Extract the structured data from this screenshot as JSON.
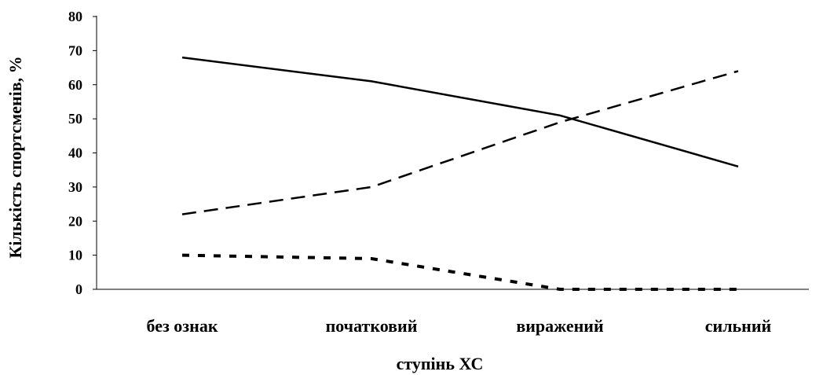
{
  "chart_data": {
    "type": "line",
    "categories": [
      "без ознак",
      "початковий",
      "виражений",
      "сильний"
    ],
    "series": [
      {
        "line_style": "solid",
        "values": [
          68,
          61,
          51,
          36
        ]
      },
      {
        "line_style": "long-dash",
        "values": [
          22,
          30,
          49,
          64
        ]
      },
      {
        "line_style": "short-dash",
        "values": [
          10,
          9,
          0,
          0
        ]
      }
    ],
    "xlabel": "ступінь ХС",
    "ylabel": "Кількість спортсменів, %",
    "ylim": [
      0,
      80
    ],
    "yticks": [
      "0",
      "10",
      "20",
      "30",
      "40",
      "50",
      "60",
      "70",
      "80"
    ],
    "grid": false,
    "legend": "none",
    "line_color": "#000000"
  }
}
